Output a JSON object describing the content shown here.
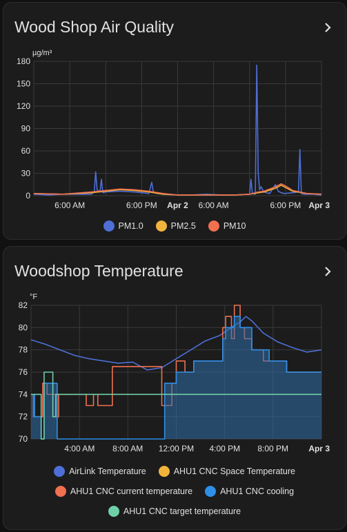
{
  "cards": [
    {
      "title": "Wood Shop Air Quality",
      "chart_data": {
        "type": "line",
        "unit": "µg/m³",
        "ylim": [
          0,
          180
        ],
        "yticks": [
          0,
          30,
          60,
          90,
          120,
          150,
          180
        ],
        "xticks": [
          "6:00 AM",
          "6:00 PM",
          "Apr 2",
          "6:00 AM",
          "6:00 PM",
          "Apr 3"
        ],
        "xtick_bold": [
          false,
          false,
          true,
          false,
          false,
          true
        ],
        "xtick_pos": [
          0.125,
          0.375,
          0.5,
          0.625,
          0.875,
          1.0
        ],
        "grid": true,
        "legend_position": "bottom",
        "series": [
          {
            "name": "PM1.0",
            "color": "#4e6fd6",
            "x": [
              0,
              0.05,
              0.1,
              0.2,
              0.21,
              0.215,
              0.22,
              0.23,
              0.235,
              0.24,
              0.25,
              0.3,
              0.35,
              0.4,
              0.41,
              0.415,
              0.42,
              0.43,
              0.45,
              0.5,
              0.55,
              0.6,
              0.65,
              0.7,
              0.75,
              0.755,
              0.76,
              0.77,
              0.775,
              0.78,
              0.785,
              0.79,
              0.8,
              0.82,
              0.84,
              0.85,
              0.86,
              0.87,
              0.9,
              0.92,
              0.925,
              0.93,
              0.94,
              0.97,
              1.0
            ],
            "y": [
              2,
              1,
              2,
              2,
              5,
              32,
              8,
              5,
              22,
              4,
              5,
              6,
              5,
              3,
              18,
              6,
              4,
              3,
              2,
              1,
              1,
              2,
              1,
              1,
              2,
              22,
              3,
              2,
              175,
              30,
              8,
              12,
              5,
              3,
              15,
              6,
              4,
              3,
              4,
              5,
              62,
              3,
              2,
              2,
              1
            ]
          },
          {
            "name": "PM2.5",
            "color": "#f0b43c",
            "x": [
              0,
              0.1,
              0.2,
              0.25,
              0.3,
              0.35,
              0.4,
              0.45,
              0.5,
              0.6,
              0.7,
              0.75,
              0.78,
              0.8,
              0.84,
              0.86,
              0.88,
              0.9,
              0.95,
              1.0
            ],
            "y": [
              3,
              2,
              4,
              6,
              8,
              7,
              5,
              2,
              1,
              1,
              1,
              2,
              4,
              5,
              10,
              14,
              10,
              6,
              3,
              2
            ]
          },
          {
            "name": "PM10",
            "color": "#f07050",
            "x": [
              0,
              0.1,
              0.2,
              0.25,
              0.3,
              0.35,
              0.4,
              0.45,
              0.5,
              0.6,
              0.7,
              0.75,
              0.78,
              0.8,
              0.84,
              0.86,
              0.88,
              0.9,
              0.95,
              1.0
            ],
            "y": [
              3,
              2,
              5,
              7,
              9,
              8,
              6,
              3,
              1,
              1,
              1,
              2,
              5,
              6,
              12,
              16,
              12,
              7,
              3,
              2
            ]
          }
        ]
      }
    },
    {
      "title": "Woodshop Temperature",
      "chart_data": {
        "type": "line",
        "unit": "°F",
        "ylim": [
          70,
          82
        ],
        "yticks": [
          70,
          72,
          74,
          76,
          78,
          80,
          82
        ],
        "xticks": [
          "4:00 AM",
          "8:00 AM",
          "12:00 PM",
          "4:00 PM",
          "8:00 PM",
          "Apr 3"
        ],
        "xtick_bold": [
          false,
          false,
          false,
          false,
          false,
          true
        ],
        "xtick_pos": [
          0.167,
          0.333,
          0.5,
          0.667,
          0.833,
          1.0
        ],
        "grid": true,
        "legend_position": "bottom",
        "series": [
          {
            "name": "AirLink Temperature",
            "color": "#4e6fd6",
            "x": [
              0,
              0.05,
              0.1,
              0.15,
              0.2,
              0.25,
              0.3,
              0.35,
              0.4,
              0.45,
              0.5,
              0.55,
              0.6,
              0.65,
              0.7,
              0.72,
              0.74,
              0.76,
              0.8,
              0.85,
              0.9,
              0.95,
              1.0
            ],
            "y": [
              78.9,
              78.5,
              78.0,
              77.5,
              77.2,
              77.0,
              76.8,
              76.9,
              76.2,
              76.4,
              77.2,
              78.0,
              78.8,
              79.3,
              80.2,
              80.5,
              81.0,
              80.6,
              79.5,
              78.7,
              78.2,
              77.8,
              78.0
            ]
          },
          {
            "name": "AHU1 CNC Space Temperature",
            "color": "#f0b43c",
            "x": [],
            "y": []
          },
          {
            "name": "AHU1 CNC current temperature",
            "color": "#f07050",
            "x": [
              0,
              0.008,
              0.008,
              0.04,
              0.04,
              0.055,
              0.055,
              0.085,
              0.085,
              0.095,
              0.095,
              0.19,
              0.19,
              0.215,
              0.215,
              0.23,
              0.23,
              0.28,
              0.28,
              0.45,
              0.45,
              0.465,
              0.465,
              0.485,
              0.485,
              0.5,
              0.5,
              0.53,
              0.53,
              0.56,
              0.56,
              0.66,
              0.66,
              0.67,
              0.67,
              0.69,
              0.69,
              0.7,
              0.7,
              0.72,
              0.72,
              0.735,
              0.735,
              0.76,
              0.76,
              0.8,
              0.8,
              0.82,
              0.82,
              0.88,
              0.88,
              0.93,
              0.93,
              1.0
            ],
            "y": [
              74,
              74,
              72,
              72,
              75,
              75,
              74,
              74,
              72,
              72,
              74,
              74,
              73,
              73,
              74,
              74,
              73,
              73,
              76.5,
              76.5,
              73,
              73,
              73,
              73,
              75,
              75,
              77,
              77,
              76,
              76,
              77,
              77,
              80,
              80,
              81,
              81,
              79,
              79,
              82,
              82,
              80,
              80,
              79,
              79,
              78,
              78,
              77,
              77,
              77,
              77,
              76,
              76,
              76,
              76
            ]
          },
          {
            "name": "AHU1 CNC cooling",
            "color": "#2f8fe8",
            "x": [
              0,
              0.012,
              0.012,
              0.035,
              0.035,
              0.045,
              0.045,
              0.09,
              0.09,
              0.46,
              0.46,
              0.5,
              0.5,
              0.53,
              0.53,
              0.56,
              0.56,
              0.66,
              0.66,
              0.67,
              0.67,
              0.7,
              0.7,
              0.72,
              0.72,
              0.76,
              0.76,
              0.82,
              0.82,
              0.88,
              0.88,
              0.93,
              0.93,
              1.0
            ],
            "y": [
              74,
              74,
              72,
              72,
              70,
              70,
              75,
              75,
              70,
              70,
              75,
              75,
              76,
              76,
              76,
              76,
              77,
              77,
              79,
              79,
              80,
              80,
              81,
              81,
              80,
              80,
              78,
              78,
              77,
              77,
              76,
              76,
              76,
              76
            ]
          },
          {
            "name": "AHU1 CNC target temperature",
            "color": "#6fcfa8",
            "x": [
              0,
              0.035,
              0.035,
              0.045,
              0.045,
              0.075,
              0.075,
              0.085,
              0.085,
              1.0
            ],
            "y": [
              74,
              74,
              70,
              70,
              76,
              76,
              72,
              72,
              74,
              74
            ]
          }
        ]
      }
    }
  ]
}
